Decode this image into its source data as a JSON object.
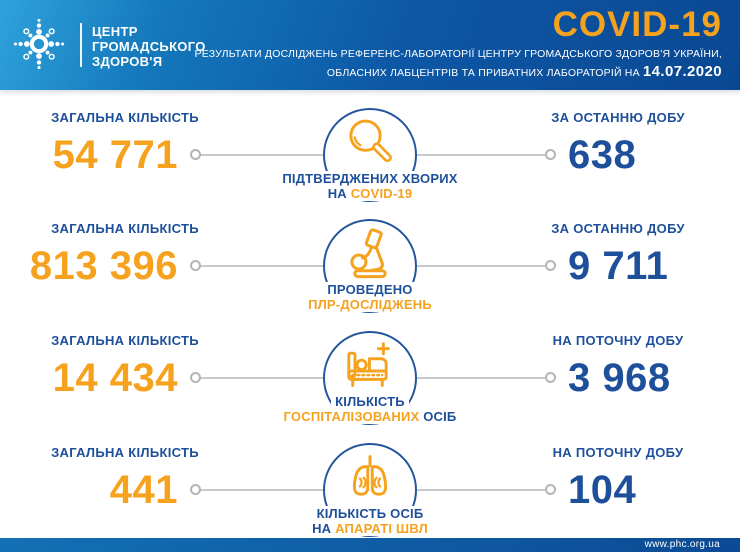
{
  "header": {
    "logo_lines": [
      "ЦЕНТР",
      "ГРОМАДСЬКОГО",
      "ЗДОРОВ'Я"
    ],
    "title": "COVID-19",
    "subtitle_line1": "РЕЗУЛЬТАТИ ДОСЛІДЖЕНЬ РЕФЕРЕНС-ЛАБОРАТОРІЇ ЦЕНТРУ ГРОМАДСЬКОГО ЗДОРОВ'Я УКРАЇНИ,",
    "subtitle_line2": "ОБЛАСНИХ ЛАБЦЕНТРІВ ТА ПРИВАТНИХ ЛАБОРАТОРІЙ НА ",
    "date": "14.07.2020"
  },
  "rows": [
    {
      "left_label": "ЗАГАЛЬНА КІЛЬКІСТЬ",
      "left_value": "54 771",
      "right_label": "ЗА ОСТАННЮ ДОБУ",
      "right_value": "638",
      "icon": "magnifier-icon",
      "caption_line1": [
        {
          "text": "ПІДТВЕРДЖЕНИХ ХВОРИХ",
          "style": "navy"
        }
      ],
      "caption_line2": [
        {
          "text": "НА ",
          "style": "navy"
        },
        {
          "text": "COVID-19",
          "style": "orange"
        }
      ]
    },
    {
      "left_label": "ЗАГАЛЬНА КІЛЬКІСТЬ",
      "left_value": "813 396",
      "right_label": "ЗА ОСТАННЮ ДОБУ",
      "right_value": "9 711",
      "icon": "microscope-icon",
      "caption_line1": [
        {
          "text": "ПРОВЕДЕНО",
          "style": "navy"
        }
      ],
      "caption_line2": [
        {
          "text": "ПЛР-ДОСЛІДЖЕНЬ",
          "style": "orange"
        }
      ]
    },
    {
      "left_label": "ЗАГАЛЬНА КІЛЬКІСТЬ",
      "left_value": "14 434",
      "right_label": "НА ПОТОЧНУ ДОБУ",
      "right_value": "3 968",
      "icon": "hospital-bed-icon",
      "caption_line1": [
        {
          "text": "КІЛЬКІСТЬ",
          "style": "navy"
        }
      ],
      "caption_line2": [
        {
          "text": "ГОСПІТАЛІЗОВАНИХ",
          "style": "orange"
        },
        {
          "text": " ОСІБ",
          "style": "navy"
        }
      ]
    },
    {
      "left_label": "ЗАГАЛЬНА КІЛЬКІСТЬ",
      "left_value": "441",
      "right_label": "НА ПОТОЧНУ ДОБУ",
      "right_value": "104",
      "icon": "lungs-icon",
      "caption_line1": [
        {
          "text": "КІЛЬКІСТЬ ОСІБ",
          "style": "navy"
        }
      ],
      "caption_line2": [
        {
          "text": "НА ",
          "style": "navy"
        },
        {
          "text": "АПАРАТІ ШВЛ",
          "style": "orange"
        }
      ]
    }
  ],
  "icons": [
    "phc-logo-icon",
    "magnifier-icon",
    "microscope-icon",
    "hospital-bed-icon",
    "lungs-icon"
  ],
  "footer": {
    "url": "www.phc.org.ua"
  },
  "colors": {
    "orange": "#F6A21E",
    "navy": "#1D4F9A",
    "header_blue_light": "#2FA2DC",
    "header_blue_dark": "#0A4892",
    "line_gray": "#C9C9C9",
    "circle_border": "#2456A0"
  }
}
